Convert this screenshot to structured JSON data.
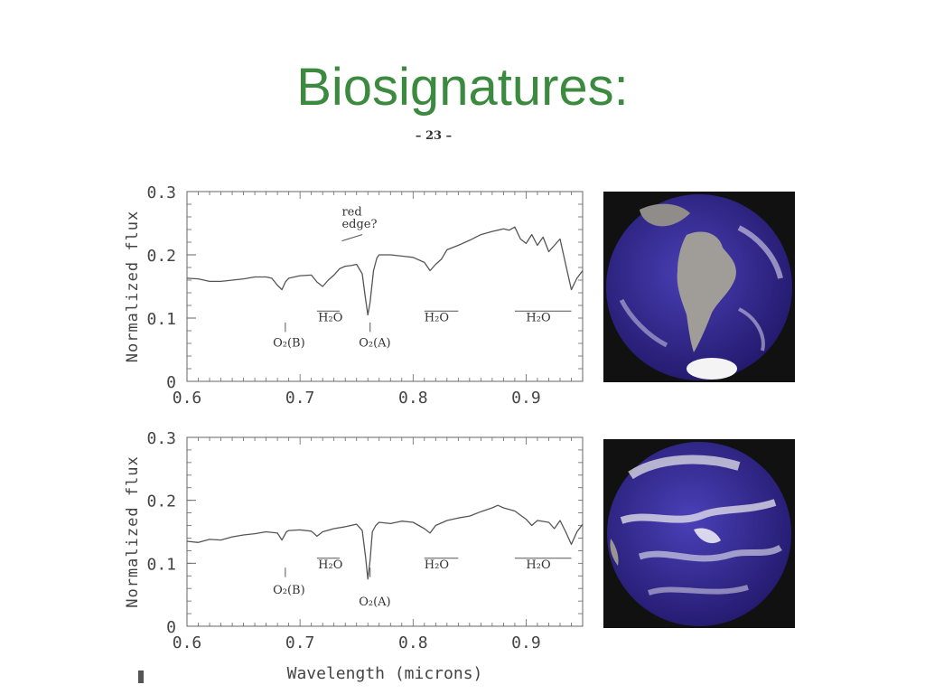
{
  "slide": {
    "title": "Biosignatures:",
    "page_number": "– 23 –"
  },
  "colors": {
    "title": "#3c8a3f",
    "line": "#555555",
    "ocean": "#3a2f9a",
    "land": "#9a9a9a",
    "cloud": "#f2f2f2"
  },
  "images": [
    {
      "name": "earth-globe-south-america",
      "alt_icon": "earth-globe-icon"
    },
    {
      "name": "earth-globe-pacific",
      "alt_icon": "earth-globe-icon"
    }
  ],
  "chart_data": [
    {
      "type": "line",
      "title": "",
      "ylabel": "Normalized flux",
      "xlabel": "",
      "xlim": [
        0.6,
        0.95
      ],
      "ylim": [
        0,
        0.3
      ],
      "xticks": [
        0.6,
        0.7,
        0.8,
        0.9
      ],
      "xtick_labels": [
        "0.6",
        "0.7",
        "0.8",
        "0.9"
      ],
      "yticks": [
        0,
        0.1,
        0.2,
        0.3
      ],
      "ytick_labels": [
        "0",
        "0.1",
        "0.2",
        "0.3"
      ],
      "series": [
        {
          "x": [
            0.6,
            0.61,
            0.62,
            0.63,
            0.64,
            0.65,
            0.66,
            0.67,
            0.675,
            0.68,
            0.684,
            0.687,
            0.69,
            0.7,
            0.71,
            0.715,
            0.72,
            0.725,
            0.73,
            0.735,
            0.74,
            0.745,
            0.75,
            0.755,
            0.758,
            0.76,
            0.762,
            0.765,
            0.768,
            0.77,
            0.78,
            0.79,
            0.8,
            0.81,
            0.815,
            0.82,
            0.825,
            0.83,
            0.84,
            0.85,
            0.86,
            0.87,
            0.88,
            0.885,
            0.89,
            0.895,
            0.9,
            0.905,
            0.91,
            0.915,
            0.92,
            0.925,
            0.93,
            0.935,
            0.94,
            0.945,
            0.95
          ],
          "y": [
            0.163,
            0.162,
            0.158,
            0.158,
            0.16,
            0.162,
            0.165,
            0.165,
            0.163,
            0.152,
            0.145,
            0.157,
            0.163,
            0.167,
            0.168,
            0.157,
            0.15,
            0.16,
            0.168,
            0.178,
            0.182,
            0.183,
            0.185,
            0.17,
            0.13,
            0.105,
            0.125,
            0.175,
            0.195,
            0.2,
            0.2,
            0.198,
            0.196,
            0.188,
            0.175,
            0.185,
            0.193,
            0.208,
            0.215,
            0.223,
            0.232,
            0.237,
            0.241,
            0.239,
            0.244,
            0.225,
            0.218,
            0.232,
            0.215,
            0.228,
            0.205,
            0.215,
            0.225,
            0.185,
            0.145,
            0.163,
            0.175
          ]
        }
      ],
      "annotations": [
        {
          "text": "red",
          "x": 0.737,
          "y": 0.262
        },
        {
          "text": "edge?",
          "x": 0.737,
          "y": 0.243
        },
        {
          "text": "O₂(B)",
          "x": 0.676,
          "y": 0.055
        },
        {
          "text": "O₂(A)",
          "x": 0.752,
          "y": 0.055
        },
        {
          "text": "H₂O",
          "x": 0.716,
          "y": 0.095
        },
        {
          "text": "H₂O",
          "x": 0.81,
          "y": 0.095
        },
        {
          "text": "H₂O",
          "x": 0.9,
          "y": 0.095
        }
      ],
      "bands": [
        [
          0.715,
          0.735
        ],
        [
          0.81,
          0.84
        ],
        [
          0.89,
          0.94
        ]
      ],
      "markers": [
        0.687,
        0.762
      ]
    },
    {
      "type": "line",
      "title": "",
      "ylabel": "Normalized flux",
      "xlabel": "Wavelength (microns)",
      "xlim": [
        0.6,
        0.95
      ],
      "ylim": [
        0,
        0.3
      ],
      "xticks": [
        0.6,
        0.7,
        0.8,
        0.9
      ],
      "xtick_labels": [
        "0.6",
        "0.7",
        "0.8",
        "0.9"
      ],
      "yticks": [
        0,
        0.1,
        0.2,
        0.3
      ],
      "ytick_labels": [
        "0",
        "0.1",
        "0.2",
        "0.3"
      ],
      "series": [
        {
          "x": [
            0.6,
            0.61,
            0.62,
            0.63,
            0.64,
            0.65,
            0.66,
            0.67,
            0.68,
            0.684,
            0.688,
            0.69,
            0.7,
            0.71,
            0.715,
            0.72,
            0.73,
            0.74,
            0.75,
            0.755,
            0.758,
            0.76,
            0.762,
            0.764,
            0.767,
            0.77,
            0.78,
            0.79,
            0.8,
            0.81,
            0.815,
            0.82,
            0.83,
            0.84,
            0.85,
            0.86,
            0.87,
            0.875,
            0.88,
            0.89,
            0.9,
            0.905,
            0.91,
            0.92,
            0.925,
            0.93,
            0.935,
            0.94,
            0.945,
            0.95
          ],
          "y": [
            0.135,
            0.133,
            0.138,
            0.137,
            0.142,
            0.145,
            0.147,
            0.15,
            0.148,
            0.137,
            0.15,
            0.152,
            0.153,
            0.151,
            0.143,
            0.15,
            0.155,
            0.158,
            0.162,
            0.152,
            0.11,
            0.075,
            0.105,
            0.15,
            0.16,
            0.165,
            0.163,
            0.167,
            0.165,
            0.155,
            0.148,
            0.16,
            0.168,
            0.172,
            0.175,
            0.182,
            0.188,
            0.192,
            0.188,
            0.183,
            0.17,
            0.16,
            0.168,
            0.165,
            0.155,
            0.168,
            0.15,
            0.13,
            0.15,
            0.162
          ]
        }
      ],
      "annotations": [
        {
          "text": "O₂(B)",
          "x": 0.676,
          "y": 0.052
        },
        {
          "text": "O₂(A)",
          "x": 0.752,
          "y": 0.033
        },
        {
          "text": "H₂O",
          "x": 0.716,
          "y": 0.092
        },
        {
          "text": "H₂O",
          "x": 0.81,
          "y": 0.092
        },
        {
          "text": "H₂O",
          "x": 0.9,
          "y": 0.092
        }
      ],
      "bands": [
        [
          0.715,
          0.735
        ],
        [
          0.81,
          0.84
        ],
        [
          0.89,
          0.94
        ]
      ],
      "markers": [
        0.687,
        0.762
      ]
    }
  ]
}
